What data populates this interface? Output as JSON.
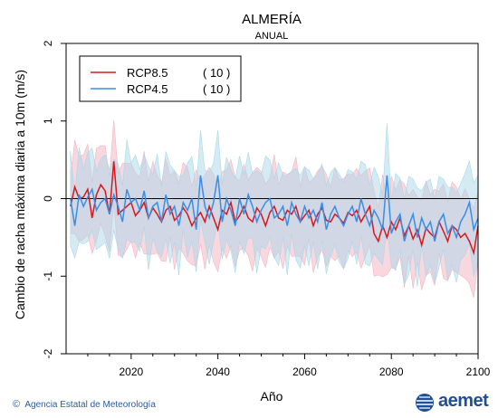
{
  "chart_data": {
    "type": "line",
    "title": "ALMERÍA",
    "subtitle": "ANUAL",
    "xlabel": "Año",
    "ylabel": "Cambio de racha máxima diaria a 10m (m/s)",
    "xlim": [
      2005,
      2100
    ],
    "ylim": [
      -2,
      2
    ],
    "x_ticks": [
      2020,
      2040,
      2060,
      2080,
      2100
    ],
    "y_ticks": [
      -2,
      -1,
      0,
      1,
      2
    ],
    "reference_line": 0,
    "legend_position": "top-left",
    "start_year": 2006,
    "series": [
      {
        "name": "RCP8.5",
        "count_label": "( 10 )",
        "color": "#d7191c",
        "band_color": "#f4b6c2",
        "values": [
          -0.1,
          0.15,
          0.0,
          0.02,
          0.12,
          -0.25,
          0.05,
          0.18,
          0.1,
          -0.2,
          0.48,
          -0.2,
          -0.15,
          -0.1,
          -0.05,
          -0.22,
          -0.15,
          -0.05,
          -0.25,
          -0.12,
          -0.2,
          -0.3,
          -0.15,
          -0.1,
          -0.28,
          -0.22,
          -0.12,
          -0.2,
          -0.35,
          -0.25,
          -0.18,
          -0.3,
          -0.1,
          -0.25,
          -0.4,
          -0.15,
          -0.2,
          -0.05,
          -0.3,
          -0.22,
          -0.1,
          -0.25,
          -0.3,
          -0.12,
          -0.2,
          -0.35,
          -0.18,
          -0.1,
          -0.25,
          -0.28,
          -0.15,
          -0.2,
          -0.1,
          -0.3,
          -0.22,
          -0.15,
          -0.35,
          -0.2,
          -0.12,
          -0.28,
          -0.3,
          -0.2,
          -0.25,
          -0.32,
          -0.18,
          -0.22,
          -0.15,
          -0.3,
          -0.2,
          -0.1,
          -0.45,
          -0.55,
          -0.35,
          -0.5,
          -0.3,
          -0.4,
          -0.25,
          -0.48,
          -0.35,
          -0.52,
          -0.4,
          -0.6,
          -0.38,
          -0.45,
          -0.5,
          -0.3,
          -0.42,
          -0.55,
          -0.35,
          -0.4,
          -0.5,
          -0.45,
          -0.55,
          -0.7,
          -0.35
        ]
      },
      {
        "name": "RCP4.5",
        "count_label": "( 10 )",
        "color": "#3a8ee6",
        "band_color": "#a9d8ea",
        "values": [
          0.0,
          -0.35,
          0.05,
          -0.1,
          0.02,
          0.12,
          -0.15,
          -0.05,
          0.0,
          -0.2,
          0.05,
          -0.1,
          -0.3,
          0.12,
          -0.05,
          0.0,
          -0.15,
          0.1,
          -0.25,
          -0.1,
          -0.05,
          -0.3,
          0.05,
          -0.2,
          -0.1,
          -0.35,
          -0.05,
          -0.15,
          0.0,
          -0.4,
          0.3,
          -0.1,
          -0.25,
          -0.05,
          0.3,
          -0.3,
          0.0,
          -0.15,
          -0.35,
          0.0,
          -0.2,
          0.05,
          -0.1,
          -0.3,
          -0.15,
          -0.05,
          0.0,
          -0.25,
          -0.2,
          -0.1,
          -0.35,
          -0.05,
          -0.2,
          -0.3,
          -0.1,
          -0.25,
          -0.15,
          -0.3,
          -0.05,
          -0.4,
          -0.2,
          -0.1,
          -0.25,
          -0.35,
          -0.2,
          -0.1,
          -0.3,
          0.0,
          -0.2,
          -0.35,
          -0.15,
          -0.25,
          -0.4,
          0.3,
          -0.45,
          -0.3,
          -0.2,
          -0.55,
          -0.35,
          -0.2,
          -0.5,
          -0.25,
          -0.4,
          -0.3,
          -0.55,
          -0.3,
          -0.2,
          -0.45,
          -0.35,
          -0.5,
          -0.3,
          -0.2,
          -0.05,
          -0.4,
          -0.25
        ]
      }
    ]
  },
  "footer": {
    "credit": "Agencia Estatal de Meteorología",
    "copyright_symbol": "©",
    "brand": "aemet"
  }
}
